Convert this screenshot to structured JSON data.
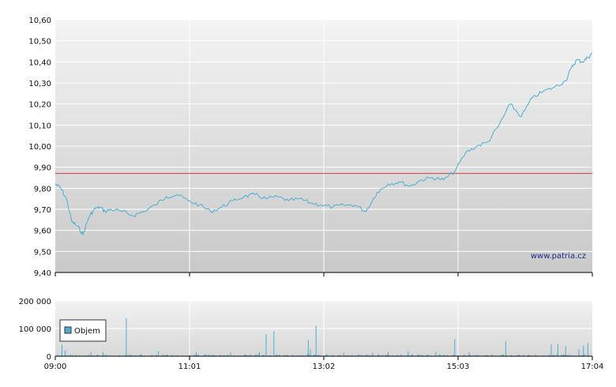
{
  "chart_data": [
    {
      "type": "line",
      "title": "",
      "xlabel": "",
      "ylabel": "",
      "watermark": "www.patria.cz",
      "x_ticks": [
        "09:00",
        "11:01",
        "13:02",
        "15:03",
        "17:04"
      ],
      "x_range_minutes": [
        540,
        1024
      ],
      "y_ticks": [
        "10,60",
        "10,50",
        "10,40",
        "10,30",
        "10,20",
        "10,10",
        "10,00",
        "9,90",
        "9,80",
        "9,70",
        "9,60",
        "9,50",
        "9,40"
      ],
      "ylim": [
        9.4,
        10.6
      ],
      "grid": true,
      "line_color": "#4aaed1",
      "reference_line": {
        "value": 9.87,
        "color": "#d23b3b"
      },
      "series": [
        {
          "x": [
            540,
            545,
            550,
            555,
            560,
            565,
            570,
            575,
            580,
            585,
            590,
            600,
            610,
            620,
            630,
            640,
            650,
            660,
            670,
            680,
            690,
            700,
            710,
            720,
            730,
            740,
            750,
            760,
            770,
            780,
            790,
            800,
            810,
            820,
            830,
            840,
            850,
            860,
            870,
            880,
            890,
            900,
            910,
            920,
            930,
            940,
            950,
            960,
            970,
            980,
            990,
            1000,
            1005,
            1010,
            1015,
            1020,
            1024
          ],
          "y": [
            9.82,
            9.8,
            9.75,
            9.64,
            9.62,
            9.58,
            9.66,
            9.7,
            9.71,
            9.69,
            9.7,
            9.69,
            9.67,
            9.69,
            9.72,
            9.76,
            9.77,
            9.74,
            9.72,
            9.69,
            9.71,
            9.74,
            9.76,
            9.77,
            9.75,
            9.76,
            9.74,
            9.75,
            9.73,
            9.72,
            9.71,
            9.72,
            9.72,
            9.69,
            9.78,
            9.82,
            9.83,
            9.81,
            9.84,
            9.85,
            9.84,
            9.88,
            9.97,
            10.0,
            10.02,
            10.1,
            10.2,
            10.14,
            10.23,
            10.26,
            10.28,
            10.31,
            10.37,
            10.41,
            10.4,
            10.42,
            10.44
          ]
        }
      ]
    },
    {
      "type": "bar",
      "title": "",
      "xlabel": "",
      "ylabel": "",
      "y_ticks": [
        "200 000",
        "100 000",
        "0"
      ],
      "ylim": [
        0,
        200000
      ],
      "legend": {
        "label": "Objem",
        "placement": "top-left"
      },
      "bar_color": "#4aaed1",
      "series": [
        {
          "name": "Objem",
          "x": [
            546,
            549,
            572,
            583,
            604,
            633,
            667,
            698,
            724,
            730,
            737,
            768,
            770,
            775,
            800,
            826,
            840,
            858,
            883,
            900,
            913,
            946,
            987,
            993,
            1000,
            1012,
            1016,
            1020
          ],
          "values": [
            42000,
            21000,
            14000,
            15000,
            138000,
            18000,
            15000,
            13000,
            15000,
            80000,
            90000,
            60000,
            25000,
            110000,
            12000,
            12000,
            14000,
            18000,
            16000,
            62000,
            14000,
            55000,
            42000,
            45000,
            35000,
            25000,
            38000,
            48000
          ]
        }
      ]
    }
  ]
}
